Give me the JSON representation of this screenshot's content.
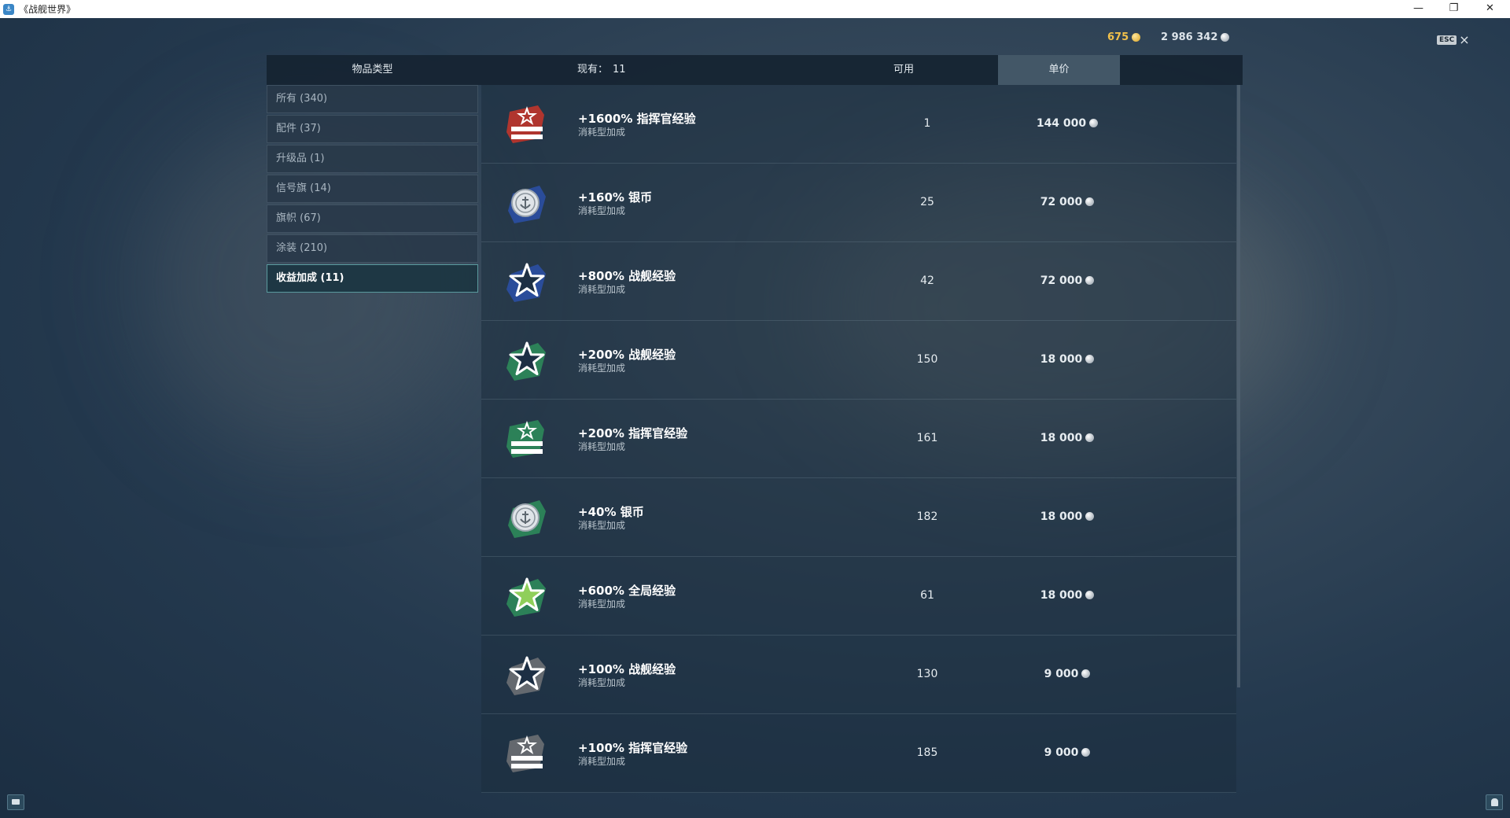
{
  "window": {
    "title": "《战舰世界》",
    "app_icon": "wows-shield-icon"
  },
  "currency": {
    "gold": "675",
    "silver": "2 986 342"
  },
  "esc": {
    "label": "ESC"
  },
  "header": {
    "category": "物品类型",
    "owned_label": "现有：",
    "owned_count": "11",
    "available": "可用",
    "price": "单价"
  },
  "categories": [
    {
      "label": "所有 (340)"
    },
    {
      "label": "配件 (37)"
    },
    {
      "label": "升级品 (1)"
    },
    {
      "label": "信号旗 (14)"
    },
    {
      "label": "旗帜 (67)"
    },
    {
      "label": "涂装 (210)"
    },
    {
      "label": "收益加成 (11)",
      "active": true
    }
  ],
  "items": [
    {
      "name": "+1600% 指挥官经验",
      "type": "消耗型加成",
      "available": "1",
      "price": "144 000",
      "icon": "commander-xp-icon",
      "color": "#c0352b"
    },
    {
      "name": "+160% 银币",
      "type": "消耗型加成",
      "available": "25",
      "price": "72 000",
      "icon": "silver-coin-icon",
      "color": "#2b4fa3"
    },
    {
      "name": "+800% 战舰经验",
      "type": "消耗型加成",
      "available": "42",
      "price": "72 000",
      "icon": "ship-xp-star-icon",
      "color": "#2b4fa3"
    },
    {
      "name": "+200% 战舰经验",
      "type": "消耗型加成",
      "available": "150",
      "price": "18 000",
      "icon": "ship-xp-star-icon",
      "color": "#2e8a5a"
    },
    {
      "name": "+200% 指挥官经验",
      "type": "消耗型加成",
      "available": "161",
      "price": "18 000",
      "icon": "commander-xp-icon",
      "color": "#2e8a5a"
    },
    {
      "name": "+40% 银币",
      "type": "消耗型加成",
      "available": "182",
      "price": "18 000",
      "icon": "silver-coin-icon",
      "color": "#2e8a5a"
    },
    {
      "name": "+600% 全局经验",
      "type": "消耗型加成",
      "available": "61",
      "price": "18 000",
      "icon": "free-xp-star-icon",
      "color": "#2e8a5a"
    },
    {
      "name": "+100% 战舰经验",
      "type": "消耗型加成",
      "available": "130",
      "price": "9 000",
      "icon": "ship-xp-star-icon",
      "color": "#6b6f73"
    },
    {
      "name": "+100% 指挥官经验",
      "type": "消耗型加成",
      "available": "185",
      "price": "9 000",
      "icon": "commander-xp-icon",
      "color": "#6b6f73"
    }
  ]
}
